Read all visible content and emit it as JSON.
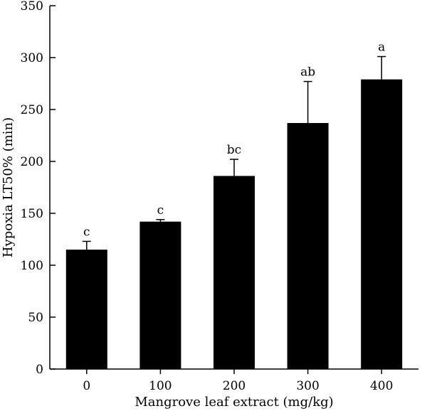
{
  "chart_data": {
    "type": "bar",
    "title": "",
    "xlabel": "Mangrove leaf extract (mg/kg)",
    "ylabel": "Hypoxia LT50% (min)",
    "ylim": [
      0,
      350
    ],
    "yticks": [
      0,
      50,
      100,
      150,
      200,
      250,
      300,
      350
    ],
    "grid": false,
    "categories": [
      "0",
      "100",
      "200",
      "300",
      "400"
    ],
    "values": [
      115,
      142,
      186,
      237,
      279
    ],
    "error_upper": [
      8,
      2,
      16,
      40,
      22
    ],
    "significance_labels": [
      "c",
      "c",
      "bc",
      "ab",
      "a"
    ],
    "colors": {
      "bar": "#000000",
      "axis": "#000000",
      "background": "#ffffff"
    }
  }
}
